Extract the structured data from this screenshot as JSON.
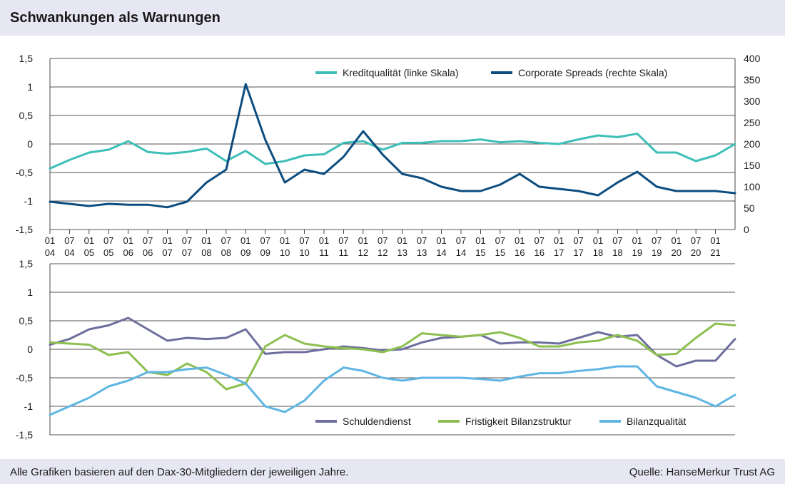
{
  "header": {
    "title": "Schwankungen als Warnungen"
  },
  "footer": {
    "note": "Alle Grafiken basieren auf den Dax-30-Mitgliedern der jeweiligen Jahre.",
    "source": "Quelle: HanseMerkur Trust AG"
  },
  "colors": {
    "kreditqualitaet": "#3dbfb8",
    "corporate_spreads": "#0d4d7f",
    "schuldendienst": "#6e6e9e",
    "fristigkeit": "#8dbf50",
    "bilanzqualitaet": "#5fb6e3",
    "grid": "#1a1a1a"
  },
  "x_ticks": [
    [
      "01",
      "04"
    ],
    [
      "07",
      "04"
    ],
    [
      "01",
      "05"
    ],
    [
      "07",
      "05"
    ],
    [
      "01",
      "06"
    ],
    [
      "07",
      "06"
    ],
    [
      "01",
      "07"
    ],
    [
      "07",
      "07"
    ],
    [
      "01",
      "08"
    ],
    [
      "07",
      "08"
    ],
    [
      "01",
      "09"
    ],
    [
      "07",
      "09"
    ],
    [
      "01",
      "10"
    ],
    [
      "07",
      "10"
    ],
    [
      "01",
      "11"
    ],
    [
      "07",
      "11"
    ],
    [
      "01",
      "12"
    ],
    [
      "07",
      "12"
    ],
    [
      "01",
      "13"
    ],
    [
      "07",
      "13"
    ],
    [
      "01",
      "14"
    ],
    [
      "07",
      "14"
    ],
    [
      "01",
      "15"
    ],
    [
      "07",
      "15"
    ],
    [
      "01",
      "16"
    ],
    [
      "07",
      "16"
    ],
    [
      "01",
      "17"
    ],
    [
      "07",
      "17"
    ],
    [
      "01",
      "18"
    ],
    [
      "07",
      "18"
    ],
    [
      "01",
      "19"
    ],
    [
      "07",
      "19"
    ],
    [
      "01",
      "20"
    ],
    [
      "07",
      "20"
    ],
    [
      "01",
      "21"
    ]
  ],
  "chart_data": [
    {
      "type": "line",
      "title": "",
      "x": [
        "2004-01",
        "2004-07",
        "2005-01",
        "2005-07",
        "2006-01",
        "2006-07",
        "2007-01",
        "2007-07",
        "2008-01",
        "2008-07",
        "2009-01",
        "2009-07",
        "2010-01",
        "2010-07",
        "2011-01",
        "2011-07",
        "2012-01",
        "2012-07",
        "2013-01",
        "2013-07",
        "2014-01",
        "2014-07",
        "2015-01",
        "2015-07",
        "2016-01",
        "2016-07",
        "2017-01",
        "2017-07",
        "2018-01",
        "2018-07",
        "2019-01",
        "2019-07",
        "2020-01",
        "2020-07",
        "2021-01",
        "2021-07"
      ],
      "ylim_left": [
        -1.5,
        1.5
      ],
      "yticks_left": [
        "-1,5",
        "-1",
        "-0,5",
        "0",
        "0,5",
        "1",
        "1,5"
      ],
      "ylim_right": [
        0,
        400
      ],
      "yticks_right": [
        "0",
        "50",
        "100",
        "150",
        "200",
        "250",
        "300",
        "350",
        "400"
      ],
      "grid": true,
      "legend_position": "top-right",
      "series": [
        {
          "name": "Kreditqualität (linke Skala)",
          "axis": "left",
          "values": [
            -0.43,
            -0.28,
            -0.15,
            -0.1,
            0.05,
            -0.14,
            -0.17,
            -0.14,
            -0.08,
            -0.3,
            -0.12,
            -0.35,
            -0.3,
            -0.2,
            -0.18,
            0.02,
            0.05,
            -0.1,
            0.02,
            0.02,
            0.05,
            0.05,
            0.08,
            0.03,
            0.05,
            0.02,
            0.0,
            0.08,
            0.15,
            0.12,
            0.18,
            -0.15,
            -0.15,
            -0.3,
            -0.2,
            0.0
          ]
        },
        {
          "name": "Corporate Spreads (rechte Skala)",
          "axis": "right",
          "values": [
            65,
            60,
            55,
            60,
            58,
            58,
            52,
            65,
            110,
            140,
            340,
            210,
            110,
            140,
            130,
            170,
            230,
            175,
            130,
            120,
            100,
            90,
            90,
            105,
            130,
            100,
            95,
            90,
            80,
            110,
            135,
            100,
            90,
            90,
            90,
            85
          ]
        }
      ]
    },
    {
      "type": "line",
      "title": "",
      "x": [
        "2004-01",
        "2004-07",
        "2005-01",
        "2005-07",
        "2006-01",
        "2006-07",
        "2007-01",
        "2007-07",
        "2008-01",
        "2008-07",
        "2009-01",
        "2009-07",
        "2010-01",
        "2010-07",
        "2011-01",
        "2011-07",
        "2012-01",
        "2012-07",
        "2013-01",
        "2013-07",
        "2014-01",
        "2014-07",
        "2015-01",
        "2015-07",
        "2016-01",
        "2016-07",
        "2017-01",
        "2017-07",
        "2018-01",
        "2018-07",
        "2019-01",
        "2019-07",
        "2020-01",
        "2020-07",
        "2021-01",
        "2021-07"
      ],
      "ylim": [
        -1.5,
        1.5
      ],
      "yticks": [
        "-1,5",
        "-1",
        "-0,5",
        "0",
        "0,5",
        "1",
        "1,5"
      ],
      "grid": true,
      "legend_position": "bottom-right",
      "series": [
        {
          "name": "Schuldendienst",
          "values": [
            0.08,
            0.18,
            0.35,
            0.42,
            0.55,
            0.35,
            0.15,
            0.2,
            0.18,
            0.2,
            0.35,
            -0.08,
            -0.05,
            -0.05,
            0.0,
            0.05,
            0.02,
            -0.02,
            0.0,
            0.12,
            0.2,
            0.22,
            0.25,
            0.1,
            0.12,
            0.12,
            0.1,
            0.2,
            0.3,
            0.22,
            0.25,
            -0.1,
            -0.3,
            -0.2,
            -0.2,
            0.18
          ]
        },
        {
          "name": "Fristigkeit Bilanzstruktur",
          "values": [
            0.12,
            0.1,
            0.08,
            -0.1,
            -0.05,
            -0.4,
            -0.45,
            -0.25,
            -0.4,
            -0.7,
            -0.6,
            0.05,
            0.25,
            0.1,
            0.05,
            0.02,
            0.0,
            -0.05,
            0.05,
            0.28,
            0.25,
            0.22,
            0.25,
            0.3,
            0.2,
            0.05,
            0.05,
            0.12,
            0.15,
            0.25,
            0.15,
            -0.1,
            -0.08,
            0.2,
            0.45,
            0.42
          ]
        },
        {
          "name": "Bilanzqualität",
          "values": [
            -1.15,
            -1.0,
            -0.85,
            -0.65,
            -0.55,
            -0.4,
            -0.4,
            -0.35,
            -0.32,
            -0.45,
            -0.6,
            -1.0,
            -1.1,
            -0.9,
            -0.55,
            -0.32,
            -0.38,
            -0.5,
            -0.55,
            -0.5,
            -0.5,
            -0.5,
            -0.52,
            -0.55,
            -0.48,
            -0.42,
            -0.42,
            -0.38,
            -0.35,
            -0.3,
            -0.3,
            -0.65,
            -0.75,
            -0.85,
            -1.0,
            -0.8
          ]
        }
      ]
    }
  ]
}
